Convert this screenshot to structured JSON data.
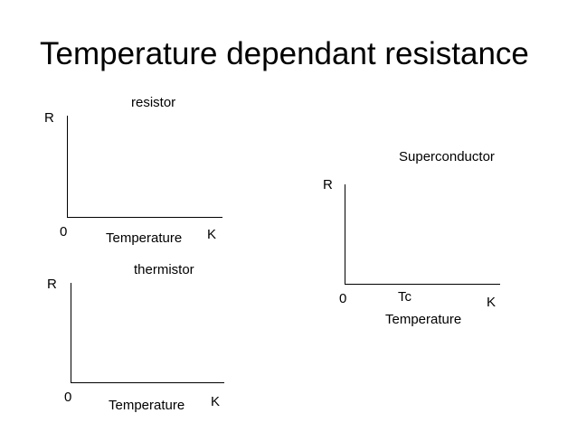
{
  "slide": {
    "title": "Temperature dependant resistance"
  },
  "graphs": {
    "resistor": {
      "name": "resistor",
      "y_axis": "R",
      "origin": "0",
      "x_axis": "Temperature",
      "x_unit": "K"
    },
    "thermistor": {
      "name": "thermistor",
      "y_axis": "R",
      "origin": "0",
      "x_axis": "Temperature",
      "x_unit": "K"
    },
    "superconductor": {
      "name": "Superconductor",
      "y_axis": "R",
      "origin": "0",
      "critical_temp": "Tc",
      "x_axis": "Temperature",
      "x_unit": "K"
    }
  }
}
